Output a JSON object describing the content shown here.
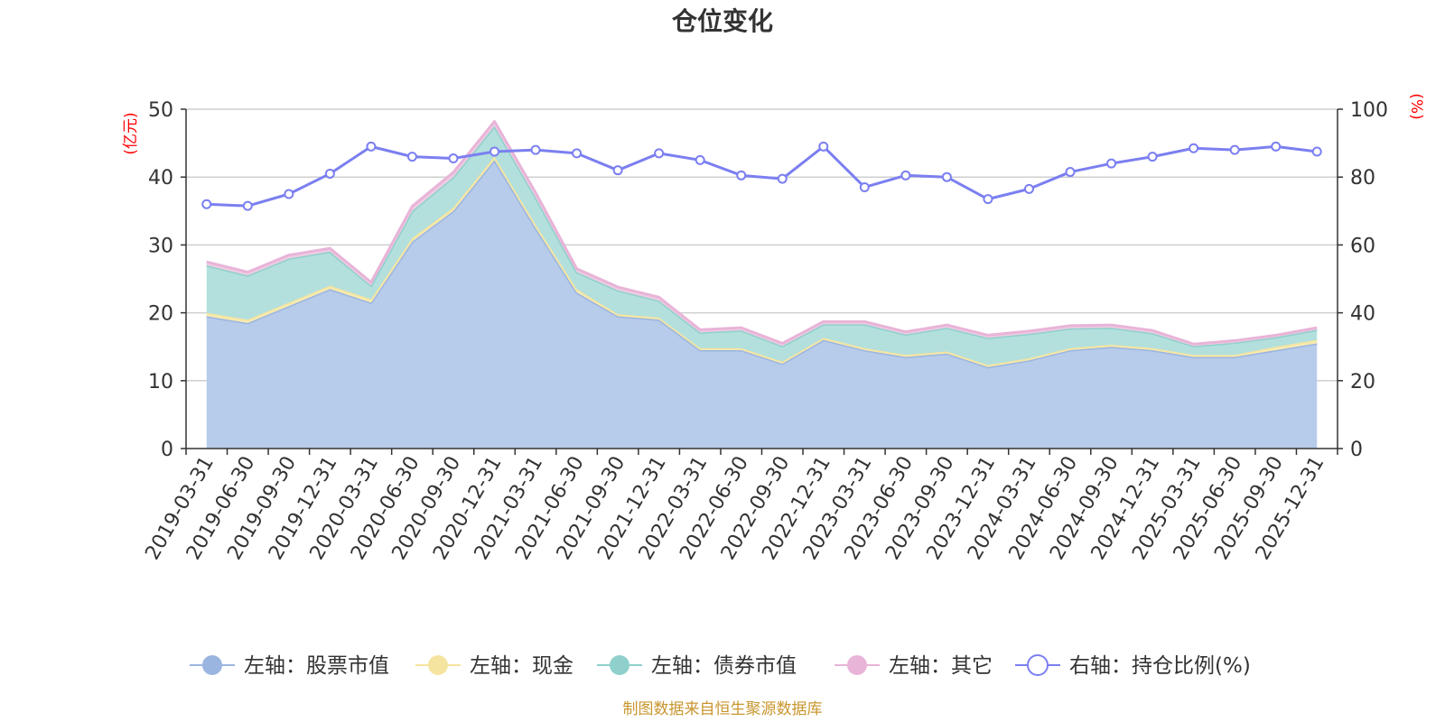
{
  "chart_data": {
    "type": "area",
    "title": "仓位变化",
    "left_axis": {
      "unit": "(亿元)",
      "ylim": [
        0,
        50
      ],
      "ticks": [
        0,
        10,
        20,
        30,
        40,
        50
      ]
    },
    "right_axis": {
      "unit": "(%)",
      "ylim": [
        0,
        100
      ],
      "ticks": [
        0,
        20,
        40,
        60,
        80,
        100
      ]
    },
    "categories": [
      "2019-03-31",
      "2019-06-30",
      "2019-09-30",
      "2019-12-31",
      "2020-03-31",
      "2020-06-30",
      "2020-09-30",
      "2020-12-31",
      "2021-03-31",
      "2021-06-30",
      "2021-09-30",
      "2021-12-31",
      "2022-03-31",
      "2022-06-30",
      "2022-09-30",
      "2022-12-31",
      "2023-03-31",
      "2023-06-30",
      "2023-09-30",
      "2023-12-31",
      "2024-03-31",
      "2024-06-30",
      "2024-09-30",
      "2024-12-31",
      "2025-03-31",
      "2025-06-30",
      "2025-09-30",
      "2025-12-31"
    ],
    "series": [
      {
        "name": "左轴：股票市值",
        "axis": "left",
        "stack": true,
        "color": "#9ab5e0",
        "fill": "#b7cbea",
        "values": [
          19.5,
          18.5,
          21,
          23.5,
          21.5,
          30.5,
          35,
          42.5,
          32.5,
          23,
          19.5,
          19,
          14.5,
          14.5,
          12.5,
          16,
          14.5,
          13.5,
          14,
          12,
          13,
          14.5,
          15,
          14.5,
          13.5,
          13.5,
          14.5,
          15.5
        ]
      },
      {
        "name": "左轴：现金",
        "axis": "left",
        "stack": true,
        "color": "#f5e4a0",
        "fill": "#f6eab0",
        "values": [
          0.5,
          0.5,
          0.5,
          0.5,
          0.5,
          0.5,
          0.5,
          0.5,
          0.5,
          0.5,
          0.3,
          0.3,
          0.3,
          0.3,
          0.3,
          0.3,
          0.3,
          0.3,
          0.3,
          0.3,
          0.3,
          0.3,
          0.3,
          0.3,
          0.3,
          0.3,
          0.5,
          0.5
        ]
      },
      {
        "name": "左轴：债券市值",
        "axis": "left",
        "stack": true,
        "color": "#8fd0cc",
        "fill": "#b3e0dd",
        "values": [
          7,
          6.5,
          6.5,
          5,
          2,
          4,
          4.5,
          4.5,
          4,
          2.5,
          3.5,
          2.5,
          2.3,
          2.6,
          2.3,
          2,
          3.5,
          3,
          3.5,
          4,
          3.6,
          2.9,
          2.5,
          2.2,
          1.3,
          1.8,
          1.4,
          1.5
        ]
      },
      {
        "name": "左轴：其它",
        "axis": "left",
        "stack": true,
        "color": "#e8b4d8",
        "fill": "#eecde3",
        "values": [
          0.5,
          0.5,
          0.5,
          0.5,
          0.5,
          0.7,
          0.7,
          0.7,
          0.7,
          0.5,
          0.5,
          0.5,
          0.4,
          0.4,
          0.4,
          0.4,
          0.4,
          0.4,
          0.4,
          0.4,
          0.4,
          0.4,
          0.4,
          0.4,
          0.3,
          0.3,
          0.3,
          0.3
        ]
      },
      {
        "name": "右轴：持仓比例(%)",
        "axis": "right",
        "type": "line",
        "color": "#7b7ff0",
        "values": [
          72,
          71.5,
          75,
          81,
          89,
          86,
          85.5,
          87.5,
          88,
          87,
          82,
          87,
          85,
          80.5,
          79.5,
          89,
          77,
          80.5,
          80,
          73.5,
          76.5,
          81.5,
          84,
          86,
          88.5,
          88,
          89,
          87.5
        ]
      }
    ],
    "source_text": "制图数据来自恒生聚源数据库"
  }
}
